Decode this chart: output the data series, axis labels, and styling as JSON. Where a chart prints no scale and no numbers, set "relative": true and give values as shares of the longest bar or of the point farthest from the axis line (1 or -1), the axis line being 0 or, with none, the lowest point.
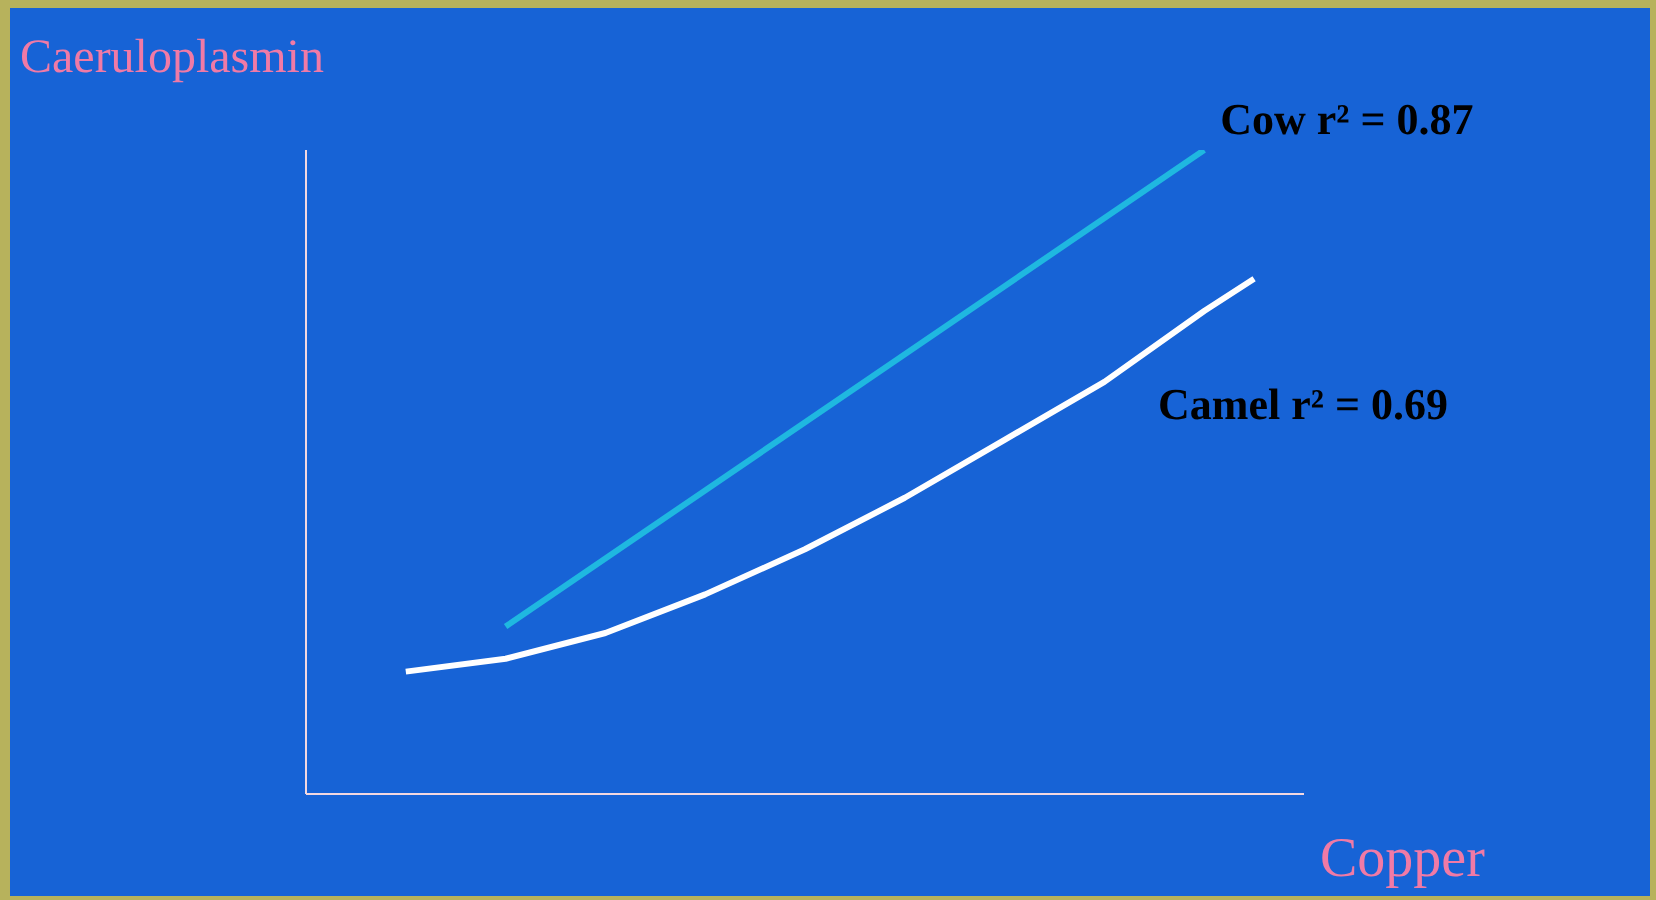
{
  "chart_data": {
    "type": "line",
    "relative": true,
    "xlabel": "Copper",
    "ylabel": "Caeruloplasmin",
    "categories": [
      null,
      null,
      null,
      null,
      null,
      null,
      null,
      null,
      null,
      null,
      null,
      null,
      null,
      null,
      null,
      null,
      null,
      null,
      null,
      null,
      null
    ],
    "legend": false,
    "grid": false,
    "marker": "none",
    "line_style": "solid",
    "series": [
      {
        "name": "Cow r² = 0.87",
        "color": "#1fb8e0",
        "values": [
          null,
          null,
          null,
          null,
          0.26,
          null,
          null,
          null,
          null,
          null,
          null,
          null,
          null,
          null,
          null,
          null,
          null,
          null,
          1,
          null,
          null
        ]
      },
      {
        "name": "Camel r² = 0.69",
        "color": "#ffffff",
        "values": [
          null,
          null,
          0.19,
          null,
          0.21,
          null,
          0.25,
          null,
          0.31,
          null,
          0.38,
          null,
          0.46,
          null,
          0.55,
          null,
          0.64,
          null,
          0.75,
          0.8,
          null
        ]
      }
    ]
  }
}
